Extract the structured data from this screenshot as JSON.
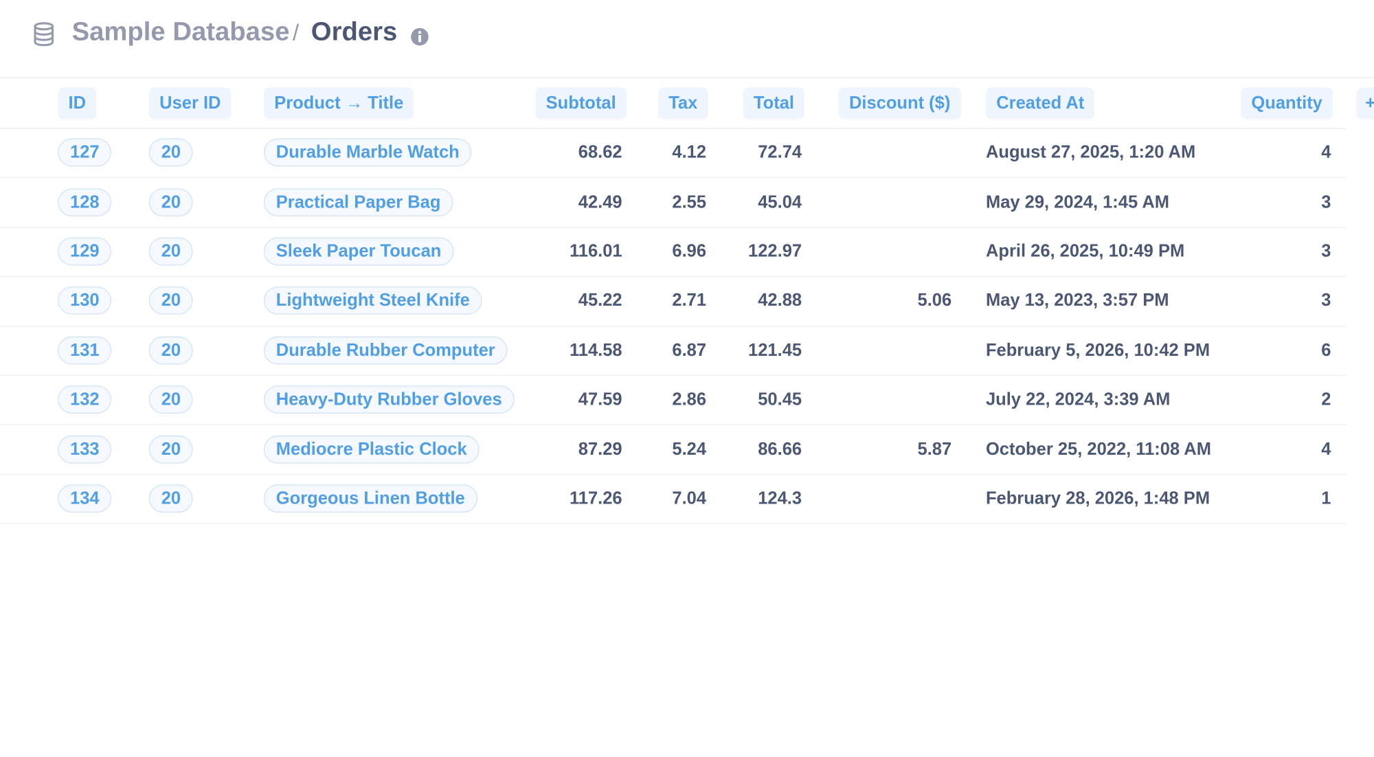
{
  "header": {
    "database": "Sample Database",
    "separator": "/",
    "table": "Orders"
  },
  "table": {
    "columns": [
      "ID",
      "User ID",
      "Product → Title",
      "Subtotal",
      "Tax",
      "Total",
      "Discount ($)",
      "Created At",
      "Quantity"
    ],
    "rows": [
      [
        "127",
        "20",
        "Durable Marble Watch",
        "68.62",
        "4.12",
        "72.74",
        null,
        "August 27, 2025, 1:20 AM",
        "4"
      ],
      [
        "128",
        "20",
        "Practical Paper Bag",
        "42.49",
        "2.55",
        "45.04",
        null,
        "May 29, 2024, 1:45 AM",
        "3"
      ],
      [
        "129",
        "20",
        "Sleek Paper Toucan",
        "116.01",
        "6.96",
        "122.97",
        null,
        "April 26, 2025, 10:49 PM",
        "3"
      ],
      [
        "130",
        "20",
        "Lightweight Steel Knife",
        "45.22",
        "2.71",
        "42.88",
        "5.06",
        "May 13, 2023, 3:57 PM",
        "3"
      ],
      [
        "131",
        "20",
        "Durable Rubber Computer",
        "114.58",
        "6.87",
        "121.45",
        null,
        "February 5, 2026, 10:42 PM",
        "6"
      ],
      [
        "132",
        "20",
        "Heavy-Duty Rubber Gloves",
        "47.59",
        "2.86",
        "50.45",
        null,
        "July 22, 2024, 3:39 AM",
        "2"
      ],
      [
        "133",
        "20",
        "Mediocre Plastic Clock",
        "87.29",
        "5.24",
        "86.66",
        "5.87",
        "October 25, 2022, 11:08 AM",
        "4"
      ],
      [
        "134",
        "20",
        "Gorgeous Linen Bottle",
        "117.26",
        "7.04",
        "124.3",
        null,
        "February 28, 2026, 1:48 PM",
        "1"
      ]
    ]
  }
}
